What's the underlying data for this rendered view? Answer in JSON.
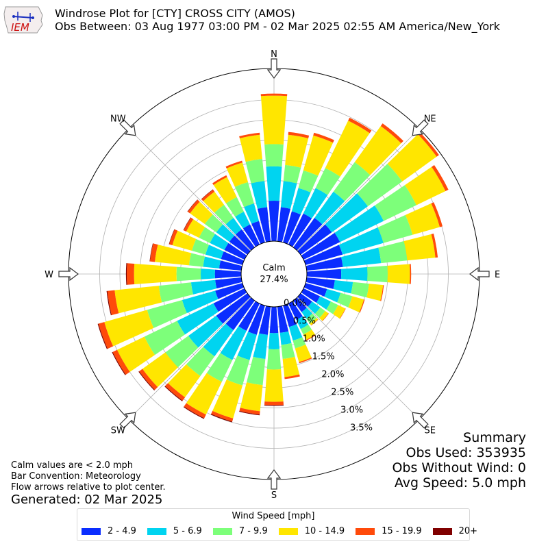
{
  "header": {
    "logo_text": "IEM",
    "title_line1": "Windrose Plot for [CTY] CROSS CITY (AMOS)",
    "title_line2": "Obs Between: 03 Aug 1977 03:00 PM - 02 Mar 2025 02:55 AM America/New_York"
  },
  "summary": {
    "heading": "Summary",
    "obs_used": "Obs Used: 353935",
    "obs_without_wind": "Obs Without Wind: 0",
    "avg_speed": "Avg Speed: 5.0 mph"
  },
  "notes": {
    "line1": "Calm values are < 2.0 mph",
    "line2": "Bar Convention: Meteorology",
    "line3": "Flow arrows relative to plot center."
  },
  "generated": "Generated: 02 Mar 2025",
  "legend": {
    "title": "Wind Speed [mph]",
    "items": [
      {
        "label": "2 - 4.9",
        "color": "#0a2dff"
      },
      {
        "label": "5 - 6.9",
        "color": "#00d4f0"
      },
      {
        "label": "7 - 9.9",
        "color": "#7dff7a"
      },
      {
        "label": "10 - 14.9",
        "color": "#ffe600"
      },
      {
        "label": "15 - 19.9",
        "color": "#ff4a0a"
      },
      {
        "label": "20+",
        "color": "#800000"
      }
    ]
  },
  "chart_data": {
    "type": "windrose",
    "calm_label": "Calm",
    "calm_value": "27.4%",
    "directions": [
      "N",
      "NE",
      "E",
      "SE",
      "S",
      "SW",
      "W",
      "NW"
    ],
    "radial_ticks": [
      "0.0%",
      "0.5%",
      "1.0%",
      "1.5%",
      "2.0%",
      "2.5%",
      "3.0%",
      "3.5%"
    ],
    "bins": [
      "2 - 4.9",
      "5 - 6.9",
      "7 - 9.9",
      "10 - 14.9",
      "15 - 19.9",
      "20+"
    ],
    "sectors_deg": [
      0,
      10,
      20,
      30,
      40,
      50,
      60,
      70,
      80,
      90,
      100,
      110,
      120,
      130,
      140,
      150,
      160,
      170,
      180,
      190,
      200,
      210,
      220,
      230,
      240,
      250,
      260,
      270,
      280,
      290,
      300,
      310,
      320,
      330,
      340,
      350
    ],
    "cumulative_pct": [
      [
        1.0,
        1.85,
        2.4,
        3.6,
        3.65,
        3.65
      ],
      [
        0.85,
        1.5,
        1.9,
        2.65,
        2.72,
        2.72
      ],
      [
        0.8,
        1.4,
        1.85,
        2.75,
        2.82,
        2.82
      ],
      [
        0.85,
        1.55,
        2.1,
        3.4,
        3.48,
        3.48
      ],
      [
        0.9,
        1.7,
        2.6,
        3.7,
        3.78,
        3.78
      ],
      [
        0.95,
        2.05,
        3.1,
        4.15,
        4.22,
        4.22
      ],
      [
        1.0,
        2.2,
        3.1,
        3.9,
        3.98,
        3.98
      ],
      [
        0.95,
        2.0,
        2.75,
        3.45,
        3.52,
        3.52
      ],
      [
        0.9,
        1.85,
        2.5,
        3.2,
        3.26,
        3.26
      ],
      [
        0.85,
        1.5,
        2.0,
        2.55,
        2.58,
        2.58
      ],
      [
        0.7,
        1.15,
        1.55,
        1.9,
        1.92,
        1.92
      ],
      [
        0.55,
        0.9,
        1.2,
        1.5,
        1.52,
        1.52
      ],
      [
        0.45,
        0.75,
        0.95,
        1.15,
        1.16,
        1.16
      ],
      [
        0.35,
        0.6,
        0.75,
        0.85,
        0.86,
        0.86
      ],
      [
        0.35,
        0.55,
        0.7,
        0.75,
        0.76,
        0.76
      ],
      [
        0.45,
        0.7,
        0.85,
        1.0,
        1.02,
        1.02
      ],
      [
        0.55,
        0.9,
        1.1,
        1.45,
        1.48,
        1.48
      ],
      [
        0.65,
        0.95,
        1.3,
        1.75,
        1.8,
        1.8
      ],
      [
        0.65,
        1.05,
        1.55,
        2.35,
        2.43,
        2.45
      ],
      [
        0.7,
        1.3,
        1.95,
        2.6,
        2.68,
        2.7
      ],
      [
        0.75,
        1.4,
        2.05,
        2.9,
        2.98,
        3.0
      ],
      [
        0.75,
        1.55,
        2.15,
        3.05,
        3.15,
        3.17
      ],
      [
        0.9,
        1.7,
        2.3,
        2.95,
        3.05,
        3.07
      ],
      [
        0.95,
        1.8,
        2.5,
        3.2,
        3.3,
        3.32
      ],
      [
        0.85,
        1.85,
        2.75,
        3.5,
        3.62,
        3.64
      ],
      [
        0.7,
        1.55,
        2.45,
        3.55,
        3.7,
        3.72
      ],
      [
        0.65,
        1.25,
        2.05,
        3.15,
        3.33,
        3.35
      ],
      [
        0.65,
        1.0,
        1.6,
        2.65,
        2.83,
        2.85
      ],
      [
        0.55,
        0.95,
        1.3,
        2.15,
        2.27,
        2.28
      ],
      [
        0.55,
        0.95,
        1.3,
        1.8,
        1.88,
        1.89
      ],
      [
        0.55,
        0.95,
        1.25,
        1.6,
        1.67,
        1.68
      ],
      [
        0.55,
        0.95,
        1.3,
        1.75,
        1.82,
        1.83
      ],
      [
        0.55,
        0.9,
        1.3,
        1.7,
        1.76,
        1.77
      ],
      [
        0.55,
        0.9,
        1.3,
        1.85,
        1.9,
        1.9
      ],
      [
        0.55,
        1.0,
        1.55,
        2.05,
        2.1,
        2.1
      ],
      [
        0.85,
        1.5,
        2.05,
        2.65,
        2.7,
        2.7
      ]
    ]
  }
}
